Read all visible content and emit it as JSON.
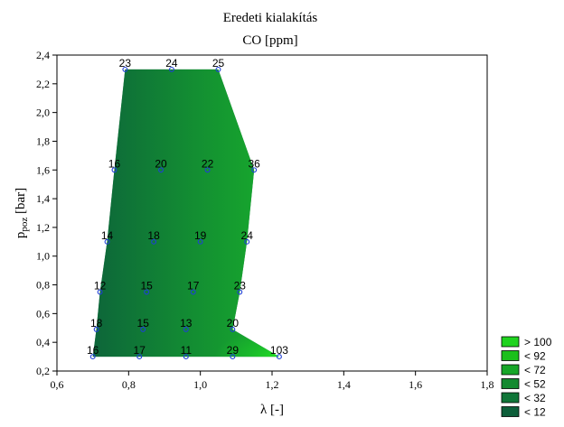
{
  "chart_data": {
    "type": "contour",
    "title": "Eredeti kialakítás",
    "subtitle": "CO [ppm]",
    "xlabel": "λ [-]",
    "ylabel_main": "p",
    "ylabel_sub": "poz",
    "ylabel_unit": " [bar]",
    "xlim": [
      0.6,
      1.8
    ],
    "ylim": [
      0.2,
      2.4
    ],
    "x_ticks": [
      "0,6",
      "0,8",
      "1,0",
      "1,2",
      "1,4",
      "1,6",
      "1,8"
    ],
    "y_ticks": [
      "0,2",
      "0,4",
      "0,6",
      "0,8",
      "1,0",
      "1,2",
      "1,4",
      "1,6",
      "1,8",
      "2,0",
      "2,2",
      "2,4"
    ],
    "grid": false,
    "points": [
      {
        "x": 0.79,
        "y": 2.3,
        "label": "23"
      },
      {
        "x": 0.92,
        "y": 2.3,
        "label": "24"
      },
      {
        "x": 1.05,
        "y": 2.3,
        "label": "25"
      },
      {
        "x": 0.76,
        "y": 1.6,
        "label": "16"
      },
      {
        "x": 0.89,
        "y": 1.6,
        "label": "20"
      },
      {
        "x": 1.02,
        "y": 1.6,
        "label": "22"
      },
      {
        "x": 1.15,
        "y": 1.6,
        "label": "36"
      },
      {
        "x": 0.74,
        "y": 1.1,
        "label": "14"
      },
      {
        "x": 0.87,
        "y": 1.1,
        "label": "18"
      },
      {
        "x": 1.0,
        "y": 1.1,
        "label": "19"
      },
      {
        "x": 1.13,
        "y": 1.1,
        "label": "24"
      },
      {
        "x": 0.72,
        "y": 0.75,
        "label": "12"
      },
      {
        "x": 0.85,
        "y": 0.75,
        "label": "15"
      },
      {
        "x": 0.98,
        "y": 0.75,
        "label": "17"
      },
      {
        "x": 1.11,
        "y": 0.75,
        "label": "23"
      },
      {
        "x": 0.71,
        "y": 0.49,
        "label": "18"
      },
      {
        "x": 0.84,
        "y": 0.49,
        "label": "15"
      },
      {
        "x": 0.96,
        "y": 0.49,
        "label": "13"
      },
      {
        "x": 1.09,
        "y": 0.49,
        "label": "20"
      },
      {
        "x": 0.7,
        "y": 0.3,
        "label": "16"
      },
      {
        "x": 0.83,
        "y": 0.3,
        "label": "17"
      },
      {
        "x": 0.96,
        "y": 0.3,
        "label": "11"
      },
      {
        "x": 1.09,
        "y": 0.3,
        "label": "29"
      },
      {
        "x": 1.22,
        "y": 0.3,
        "label": "103"
      }
    ],
    "region_boundary": [
      [
        0.79,
        2.3
      ],
      [
        1.05,
        2.3
      ],
      [
        1.15,
        1.6
      ],
      [
        1.13,
        1.1
      ],
      [
        1.11,
        0.75
      ],
      [
        1.09,
        0.49
      ],
      [
        1.22,
        0.3
      ],
      [
        0.7,
        0.3
      ],
      [
        0.71,
        0.49
      ],
      [
        0.72,
        0.75
      ],
      [
        0.74,
        1.1
      ],
      [
        0.76,
        1.6
      ]
    ],
    "legend": {
      "position": "bottom-right",
      "entries": [
        {
          "label": "> 100",
          "color": "#1fd31f"
        },
        {
          "label": "< 92",
          "color": "#1cbf1c"
        },
        {
          "label": "< 72",
          "color": "#17a628"
        },
        {
          "label": "< 52",
          "color": "#148a30"
        },
        {
          "label": "< 32",
          "color": "#107538"
        },
        {
          "label": "< 12",
          "color": "#0d5f3a"
        }
      ]
    },
    "colors": {
      "base": "#0d6a3a",
      "hot": "#1fd31f",
      "marker": "#1f3fd6"
    }
  }
}
